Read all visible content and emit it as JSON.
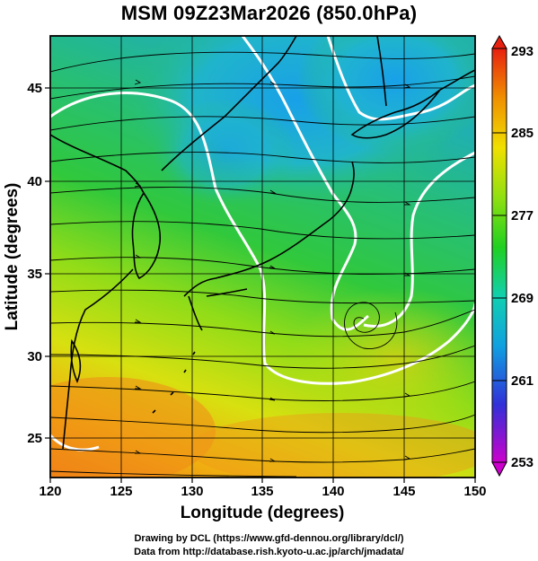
{
  "title": "MSM 09Z23Mar2026 (850.0hPa)",
  "map": {
    "xlabel": "Longitude (degrees)",
    "ylabel": "Latitude  (degrees)",
    "lon_range": [
      120,
      150
    ],
    "lat_range": [
      22.5,
      48
    ],
    "lon_ticks": [
      "120",
      "125",
      "130",
      "135",
      "140",
      "145",
      "150"
    ],
    "lat_ticks": [
      "25",
      "30",
      "35",
      "40",
      "45"
    ],
    "field": "temperature (K) with streamlines",
    "colors": {
      "cold": "#1aa8e8",
      "mid": "#22c44a",
      "warm": "#c8e010",
      "hot": "#f07818",
      "contour": "#ffffff",
      "streamline": "#000000"
    }
  },
  "colorbar": {
    "labels": [
      "293",
      "285",
      "277",
      "269",
      "261",
      "253"
    ],
    "min": 253,
    "max": 293,
    "stops": [
      "#cc00cc",
      "#2020d0",
      "#10a0e0",
      "#10d0a0",
      "#20d020",
      "#90e010",
      "#f0e000",
      "#f09000",
      "#e82010"
    ]
  },
  "credits": {
    "line1": "Drawing by DCL (https://www.gfd-dennou.org/library/dcl/)",
    "line2": "Data from http://database.rish.kyoto-u.ac.jp/arch/jmadata/"
  }
}
